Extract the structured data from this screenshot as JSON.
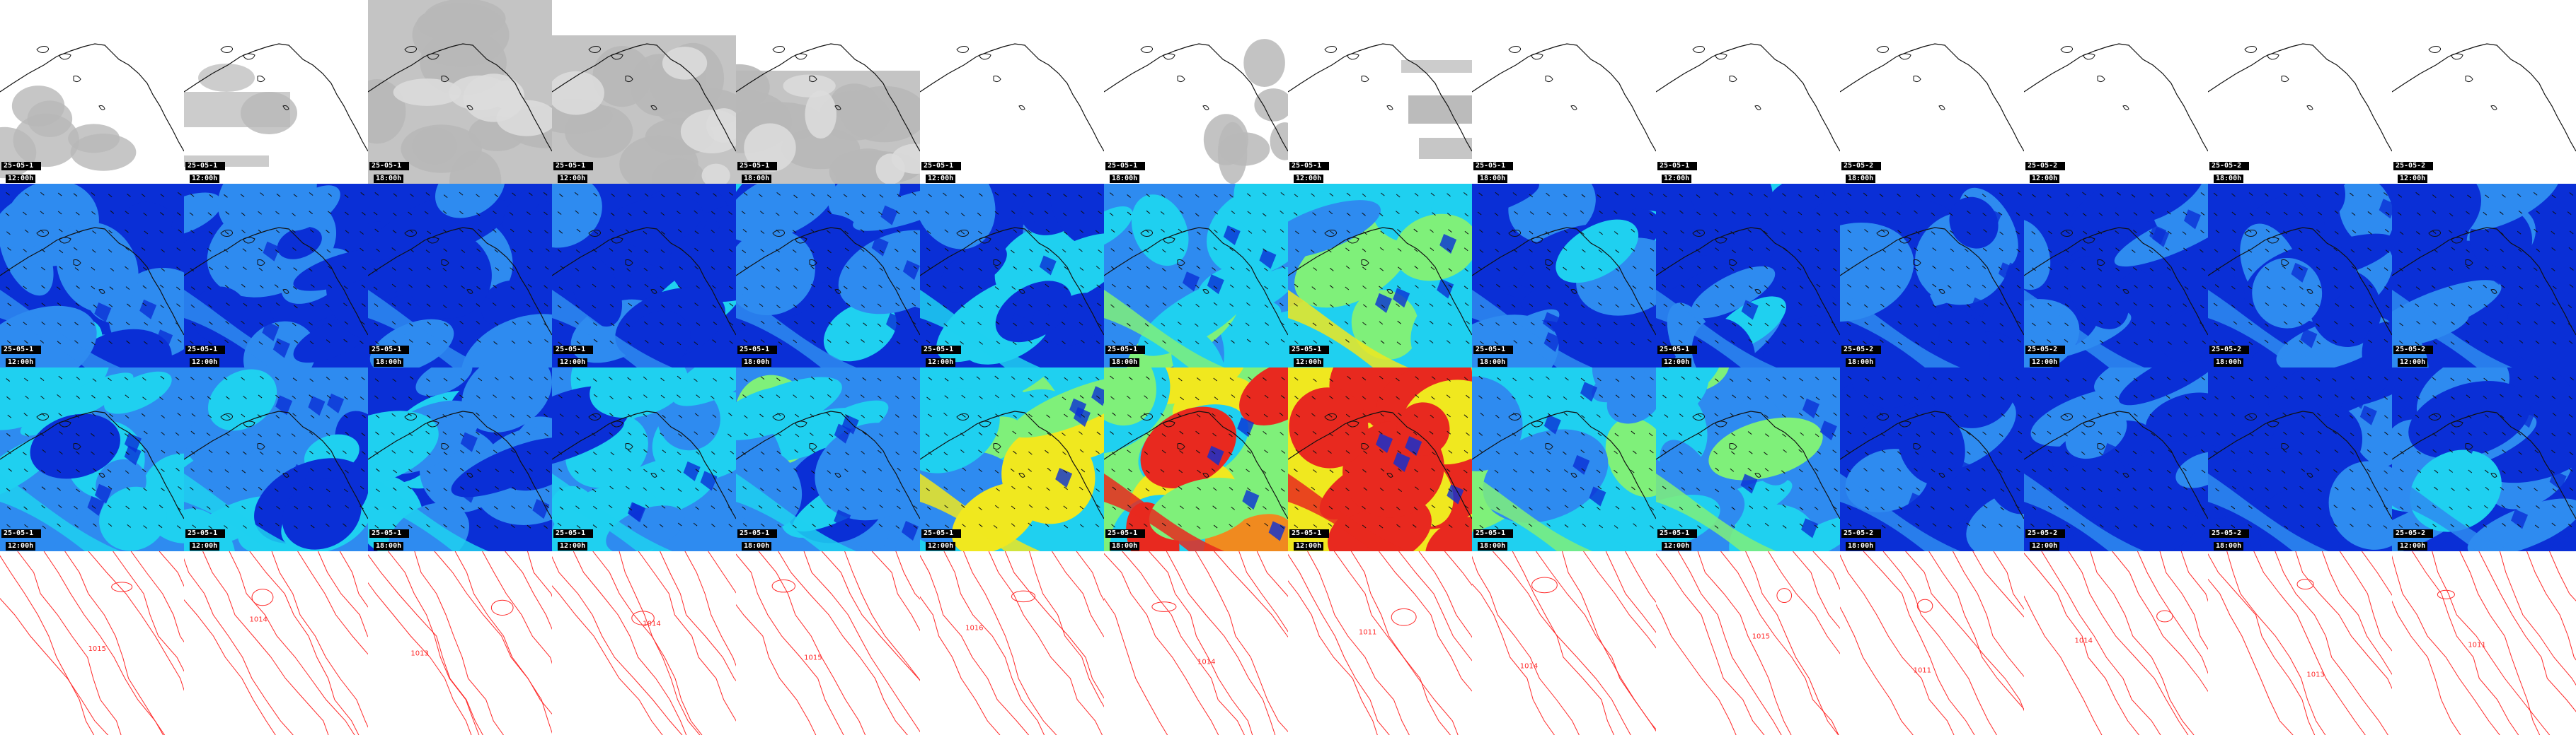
{
  "panels": {
    "rows": [
      "satellite",
      "wind_speed_upper",
      "wind_speed_lower",
      "pressure_contours"
    ],
    "columns": [
      {
        "date": "25-05-1",
        "time": "12:00h"
      },
      {
        "date": "25-05-1",
        "time": "12:00h"
      },
      {
        "date": "25-05-1",
        "time": "18:00h"
      },
      {
        "date": "25-05-1",
        "time": "12:00h"
      },
      {
        "date": "25-05-1",
        "time": "18:00h"
      },
      {
        "date": "25-05-1",
        "time": "12:00h"
      },
      {
        "date": "25-05-1",
        "time": "18:00h"
      },
      {
        "date": "25-05-1",
        "time": "12:00h"
      },
      {
        "date": "25-05-1",
        "time": "18:00h"
      },
      {
        "date": "25-05-1",
        "time": "12:00h"
      },
      {
        "date": "25-05-2",
        "time": "18:00h"
      },
      {
        "date": "25-05-2",
        "time": "12:00h"
      },
      {
        "date": "25-05-2",
        "time": "18:00h"
      },
      {
        "date": "25-05-2",
        "time": "12:00h"
      }
    ],
    "cloud_cover": [
      "partial-left",
      "partial-strip",
      "full",
      "full",
      "full-low",
      "none",
      "partial-right",
      "partial-strips",
      "none",
      "none",
      "none",
      "none",
      "none",
      "none"
    ],
    "wind_intensity_upper": [
      0.25,
      0.22,
      0.2,
      0.25,
      0.25,
      0.35,
      0.5,
      0.65,
      0.3,
      0.3,
      0.1,
      0.2,
      0.15,
      0.25
    ],
    "wind_intensity_lower": [
      0.45,
      0.4,
      0.35,
      0.45,
      0.45,
      0.65,
      0.85,
      0.95,
      0.55,
      0.5,
      0.15,
      0.2,
      0.2,
      0.3
    ],
    "pressure_labels": [
      "1015",
      "1014",
      "1013",
      "1014",
      "1015",
      "1016",
      "1014",
      "1011",
      "1014",
      "1015",
      "1011",
      "1014",
      "1013",
      "1011"
    ],
    "colors": {
      "wind_low": "#0a2fd6",
      "wind_mid": "#2e8bf0",
      "wind_base": "#1fd0f0",
      "wind_green": "#7ff07a",
      "wind_yellow": "#f0e81f",
      "wind_orange": "#f08a1f",
      "wind_red": "#e8291f",
      "isobar": "#ff2a2a",
      "cloud": "#b8b8b8"
    }
  }
}
